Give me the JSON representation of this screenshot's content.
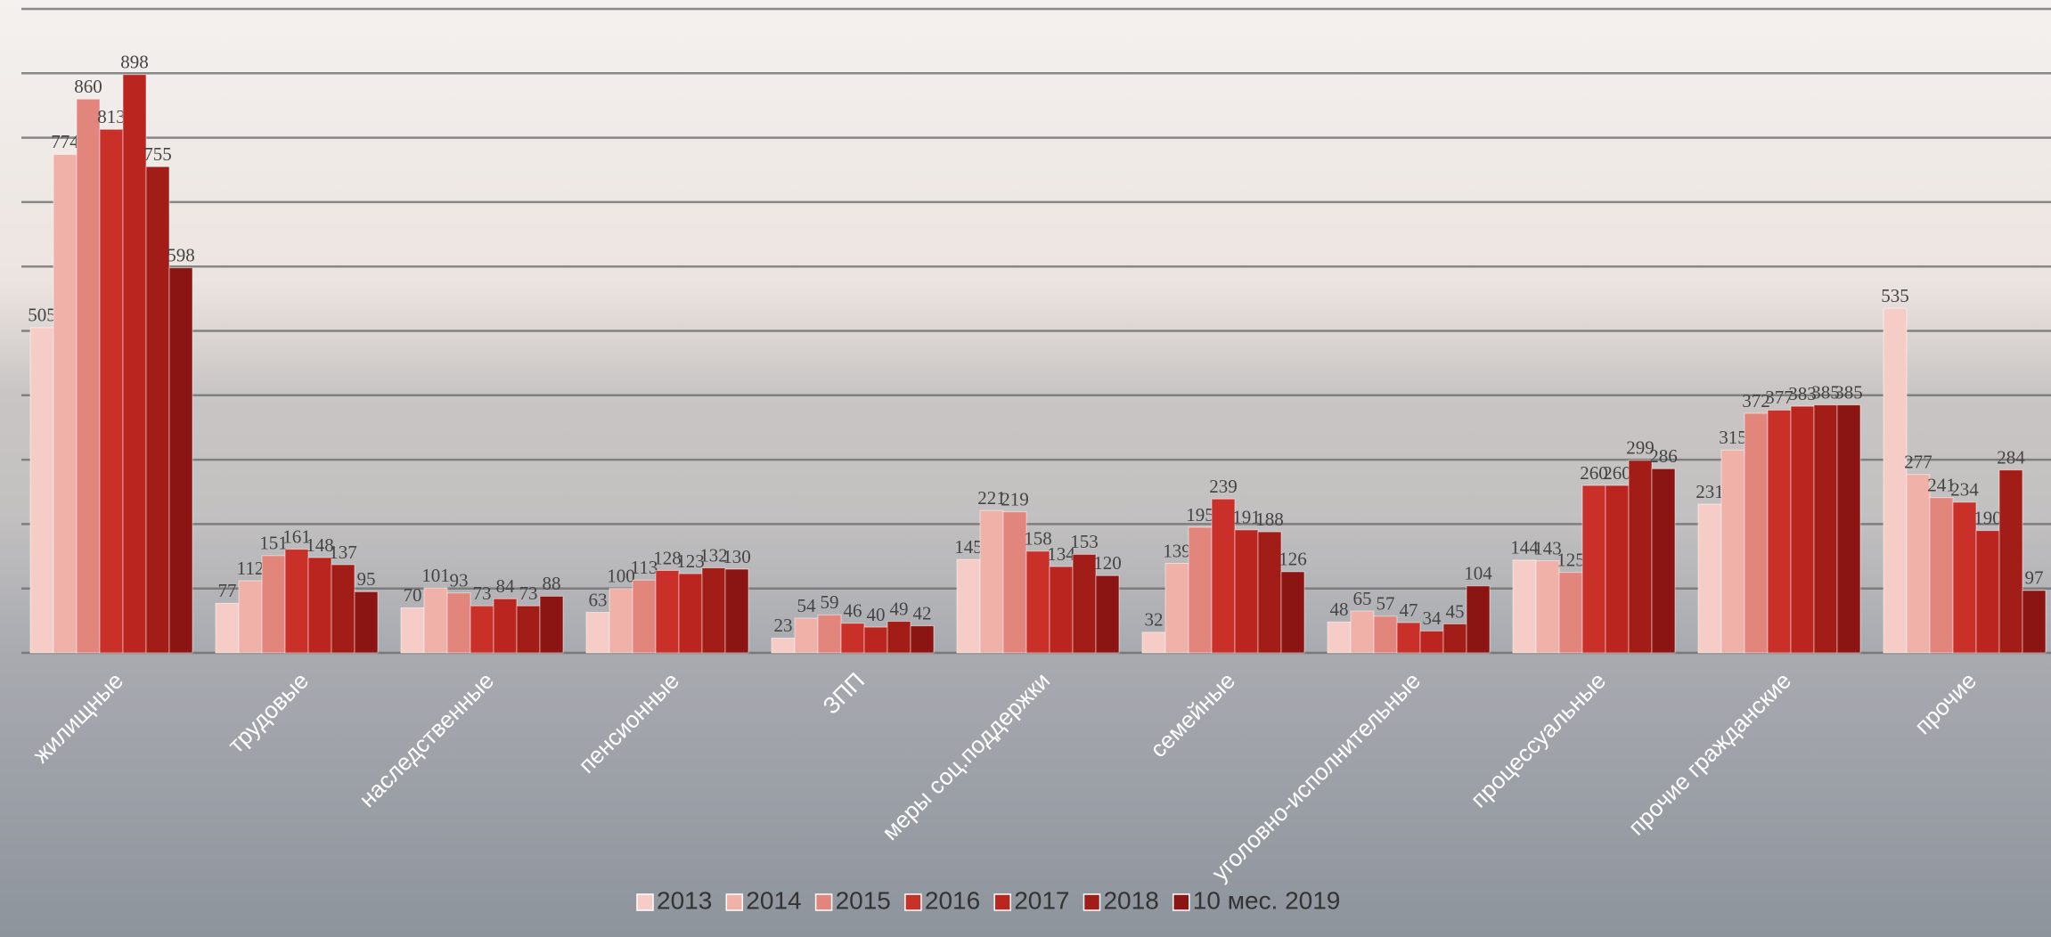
{
  "chart_data": {
    "type": "bar",
    "categories": [
      "жилищные",
      "трудовые",
      "наследственные",
      "пенсионные",
      "ЗПП",
      "меры соц.поддержки",
      "семейные",
      "уголовно-исполнительные",
      "процессуальные",
      "прочие гражданские",
      "прочие"
    ],
    "series": [
      {
        "name": "2013",
        "color": "#f6cdc6",
        "values": [
          505,
          77,
          70,
          63,
          23,
          145,
          32,
          48,
          144,
          231,
          535
        ]
      },
      {
        "name": "2014",
        "color": "#efb1a8",
        "values": [
          774,
          112,
          101,
          100,
          54,
          221,
          139,
          65,
          143,
          315,
          277
        ]
      },
      {
        "name": "2015",
        "color": "#e2857c",
        "values": [
          860,
          151,
          93,
          113,
          59,
          219,
          195,
          57,
          125,
          372,
          241
        ]
      },
      {
        "name": "2016",
        "color": "#c9302a",
        "values": [
          813,
          161,
          73,
          128,
          46,
          158,
          239,
          47,
          260,
          377,
          234
        ]
      },
      {
        "name": "2017",
        "color": "#ba2520",
        "values": [
          898,
          148,
          84,
          123,
          40,
          134,
          191,
          34,
          260,
          383,
          190
        ]
      },
      {
        "name": "2018",
        "color": "#a21c18",
        "values": [
          755,
          137,
          73,
          132,
          49,
          153,
          188,
          45,
          299,
          385,
          284
        ]
      },
      {
        "name": "10 мес. 2019",
        "color": "#8b1512",
        "values": [
          598,
          95,
          88,
          130,
          42,
          120,
          126,
          104,
          286,
          385,
          97
        ]
      }
    ],
    "ylim": [
      0,
      1000
    ],
    "yticks": [
      0,
      100,
      200,
      300,
      400,
      500,
      600,
      700,
      800,
      900,
      1000
    ],
    "grid": true
  }
}
